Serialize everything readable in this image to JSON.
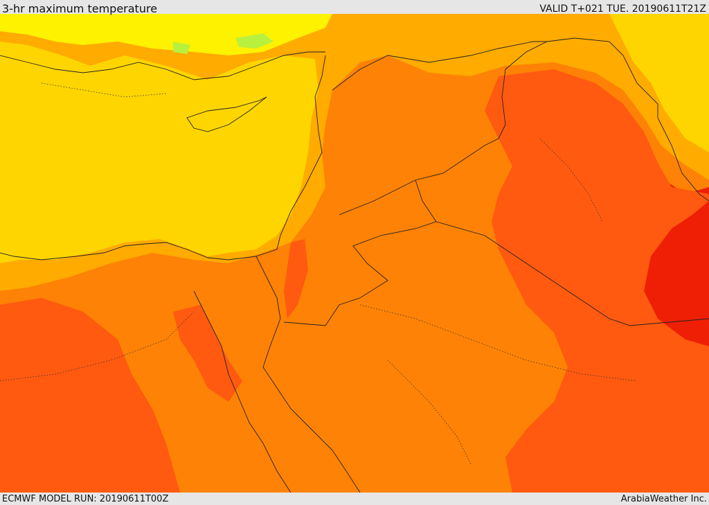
{
  "header": {
    "title": "3-hr maximum temperature",
    "valid": "VALID T+021 TUE. 20190611T21Z"
  },
  "footer": {
    "model_run": "ECMWF MODEL RUN: 20190611T00Z",
    "credit": "ArabiaWeather Inc."
  },
  "colors": {
    "very_hot": "#ee1f05",
    "hot": "#ff5a10",
    "warm_hot": "#fe8205",
    "warm": "#ffab00",
    "mild": "#ffd500",
    "mild_cool": "#fff200",
    "cool": "#b8f03e",
    "border": "#222222"
  }
}
